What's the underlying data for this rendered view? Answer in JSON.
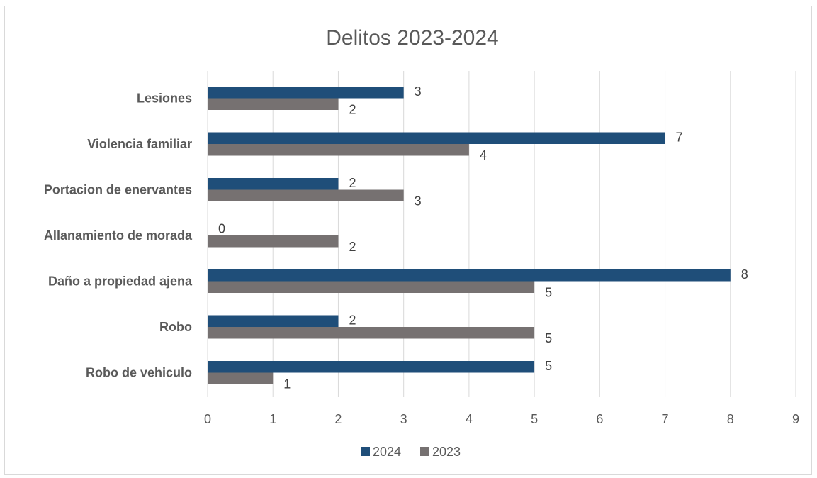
{
  "chart_data": {
    "type": "bar",
    "orientation": "horizontal",
    "title": "Delitos 2023-2024",
    "categories": [
      "Lesiones",
      "Violencia familiar",
      "Portacion de enervantes",
      "Allanamiento de morada",
      "Daño a propiedad ajena",
      "Robo",
      "Robo de vehiculo"
    ],
    "series": [
      {
        "name": "2024",
        "color": "#1f4e79",
        "values": [
          3,
          7,
          2,
          0,
          8,
          2,
          5
        ]
      },
      {
        "name": "2023",
        "color": "#767171",
        "values": [
          2,
          4,
          3,
          2,
          5,
          5,
          1
        ]
      }
    ],
    "xlim": [
      0,
      9
    ],
    "x_ticks": [
      "0",
      "1",
      "2",
      "3",
      "4",
      "5",
      "6",
      "7",
      "8",
      "9"
    ],
    "xlabel": "",
    "ylabel": "",
    "grid": "vertical",
    "legend": "bottom"
  }
}
